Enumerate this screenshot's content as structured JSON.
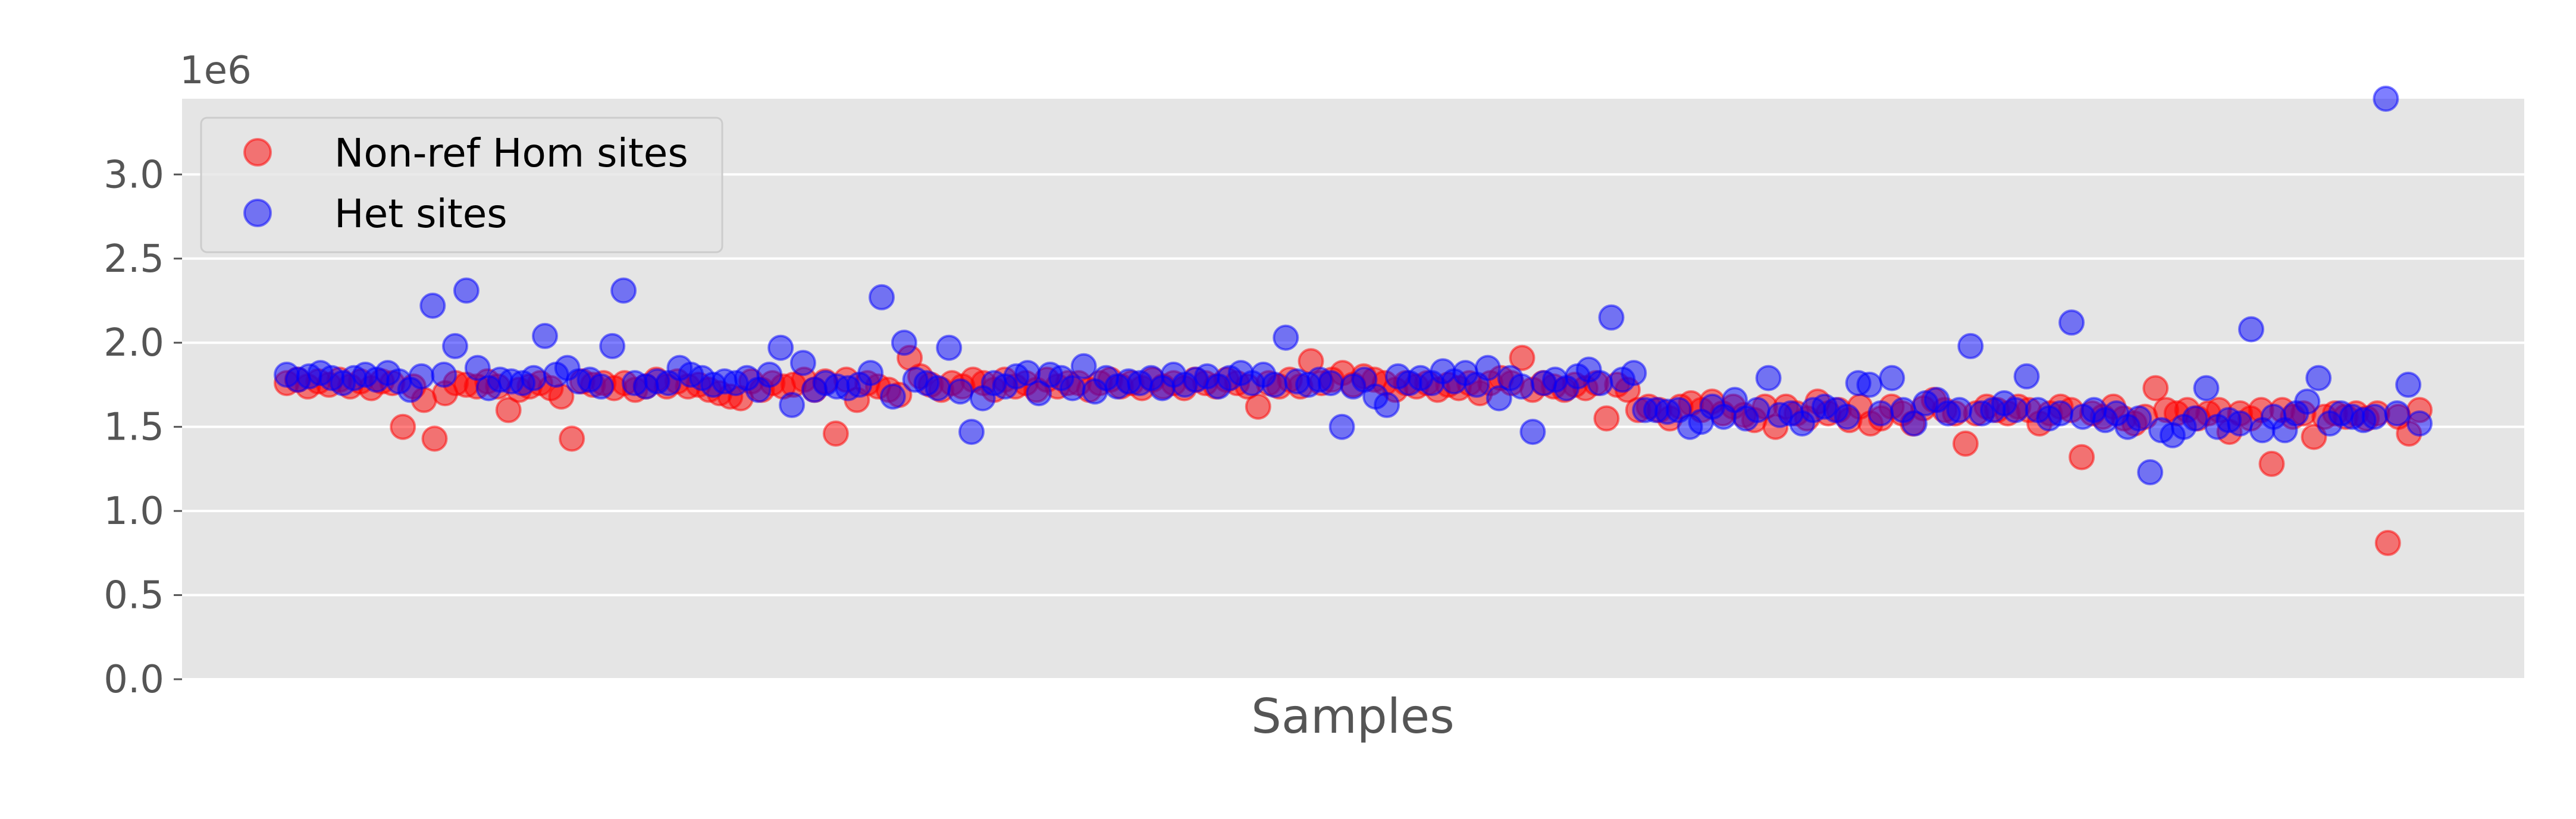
{
  "chart_data": {
    "type": "scatter",
    "xlabel": "Samples",
    "ylabel": "",
    "y_offset_label": "1e6",
    "ylim": [
      0,
      3.45
    ],
    "y_ticks": [
      "0.0",
      "0.5",
      "1.0",
      "1.5",
      "2.0",
      "2.5",
      "3.0"
    ],
    "x_ticks": [],
    "grid": true,
    "legend_position": "top-left",
    "series": [
      {
        "name": "Non-ref Hom sites",
        "color": "#ff0000",
        "values": [
          1.76,
          1.78,
          1.74,
          1.77,
          1.75,
          1.78,
          1.74,
          1.77,
          1.73,
          1.77,
          1.76,
          1.5,
          1.74,
          1.66,
          1.43,
          1.7,
          1.76,
          1.75,
          1.74,
          1.77,
          1.74,
          1.6,
          1.72,
          1.74,
          1.76,
          1.73,
          1.68,
          1.43,
          1.77,
          1.75,
          1.76,
          1.73,
          1.76,
          1.72,
          1.74,
          1.78,
          1.74,
          1.77,
          1.74,
          1.75,
          1.72,
          1.7,
          1.68,
          1.67,
          1.77,
          1.72,
          1.76,
          1.74,
          1.75,
          1.78,
          1.72,
          1.77,
          1.46,
          1.78,
          1.66,
          1.76,
          1.74,
          1.72,
          1.69,
          1.91,
          1.8,
          1.75,
          1.72,
          1.76,
          1.74,
          1.78,
          1.76,
          1.72,
          1.78,
          1.74,
          1.76,
          1.72,
          1.78,
          1.74,
          1.76,
          1.76,
          1.72,
          1.76,
          1.78,
          1.74,
          1.76,
          1.73,
          1.78,
          1.74,
          1.76,
          1.73,
          1.78,
          1.76,
          1.74,
          1.78,
          1.76,
          1.74,
          1.62,
          1.76,
          1.74,
          1.78,
          1.74,
          1.89,
          1.76,
          1.78,
          1.82,
          1.75,
          1.8,
          1.78,
          1.76,
          1.72,
          1.76,
          1.74,
          1.76,
          1.72,
          1.75,
          1.73,
          1.76,
          1.7,
          1.76,
          1.79,
          1.76,
          1.91,
          1.72,
          1.76,
          1.74,
          1.72,
          1.75,
          1.73,
          1.76,
          1.55,
          1.75,
          1.72,
          1.6,
          1.62,
          1.6,
          1.55,
          1.62,
          1.64,
          1.6,
          1.65,
          1.58,
          1.62,
          1.57,
          1.54,
          1.62,
          1.5,
          1.62,
          1.58,
          1.55,
          1.65,
          1.58,
          1.6,
          1.54,
          1.62,
          1.52,
          1.55,
          1.62,
          1.58,
          1.52,
          1.61,
          1.66,
          1.6,
          1.58,
          1.4,
          1.58,
          1.62,
          1.6,
          1.58,
          1.62,
          1.6,
          1.52,
          1.58,
          1.62,
          1.6,
          1.32,
          1.58,
          1.56,
          1.62,
          1.55,
          1.52,
          1.56,
          1.73,
          1.6,
          1.58,
          1.6,
          1.55,
          1.58,
          1.6,
          1.47,
          1.58,
          1.55,
          1.6,
          1.28,
          1.6,
          1.56,
          1.58,
          1.44,
          1.56,
          1.58,
          1.56,
          1.58,
          1.55,
          1.58,
          0.81,
          1.56,
          1.46,
          1.6
        ]
      },
      {
        "name": "Het sites",
        "color": "#0000ff",
        "values": [
          1.81,
          1.78,
          1.8,
          1.82,
          1.79,
          1.76,
          1.79,
          1.81,
          1.78,
          1.82,
          1.77,
          1.72,
          1.8,
          2.22,
          1.81,
          1.98,
          2.31,
          1.85,
          1.73,
          1.78,
          1.77,
          1.76,
          1.79,
          2.04,
          1.81,
          1.85,
          1.77,
          1.78,
          1.74,
          1.98,
          2.31,
          1.76,
          1.74,
          1.77,
          1.76,
          1.85,
          1.81,
          1.79,
          1.75,
          1.77,
          1.76,
          1.79,
          1.72,
          1.81,
          1.97,
          1.63,
          1.88,
          1.72,
          1.76,
          1.74,
          1.73,
          1.75,
          1.82,
          2.27,
          1.68,
          2.0,
          1.78,
          1.76,
          1.73,
          1.97,
          1.71,
          1.47,
          1.67,
          1.76,
          1.74,
          1.8,
          1.82,
          1.7,
          1.81,
          1.79,
          1.73,
          1.86,
          1.71,
          1.79,
          1.74,
          1.77,
          1.76,
          1.79,
          1.73,
          1.81,
          1.75,
          1.78,
          1.8,
          1.74,
          1.79,
          1.82,
          1.76,
          1.81,
          1.75,
          2.03,
          1.77,
          1.75,
          1.78,
          1.76,
          1.5,
          1.74,
          1.78,
          1.68,
          1.63,
          1.8,
          1.76,
          1.79,
          1.76,
          1.83,
          1.77,
          1.82,
          1.75,
          1.85,
          1.67,
          1.79,
          1.74,
          1.47,
          1.76,
          1.78,
          1.73,
          1.8,
          1.84,
          1.76,
          2.15,
          1.78,
          1.82,
          1.6,
          1.6,
          1.59,
          1.6,
          1.5,
          1.53,
          1.62,
          1.56,
          1.66,
          1.55,
          1.6,
          1.79,
          1.57,
          1.58,
          1.52,
          1.6,
          1.62,
          1.6,
          1.56,
          1.76,
          1.75,
          1.58,
          1.79,
          1.6,
          1.52,
          1.64,
          1.66,
          1.58,
          1.6,
          1.98,
          1.58,
          1.6,
          1.64,
          1.6,
          1.8,
          1.6,
          1.55,
          1.58,
          2.12,
          1.56,
          1.6,
          1.54,
          1.58,
          1.5,
          1.55,
          1.23,
          1.48,
          1.45,
          1.5,
          1.55,
          1.73,
          1.5,
          1.54,
          1.52,
          2.08,
          1.48,
          1.56,
          1.48,
          1.58,
          1.65,
          1.79,
          1.52,
          1.58,
          1.56,
          1.54,
          1.56,
          3.45,
          1.58,
          1.75,
          1.52
        ]
      }
    ]
  }
}
